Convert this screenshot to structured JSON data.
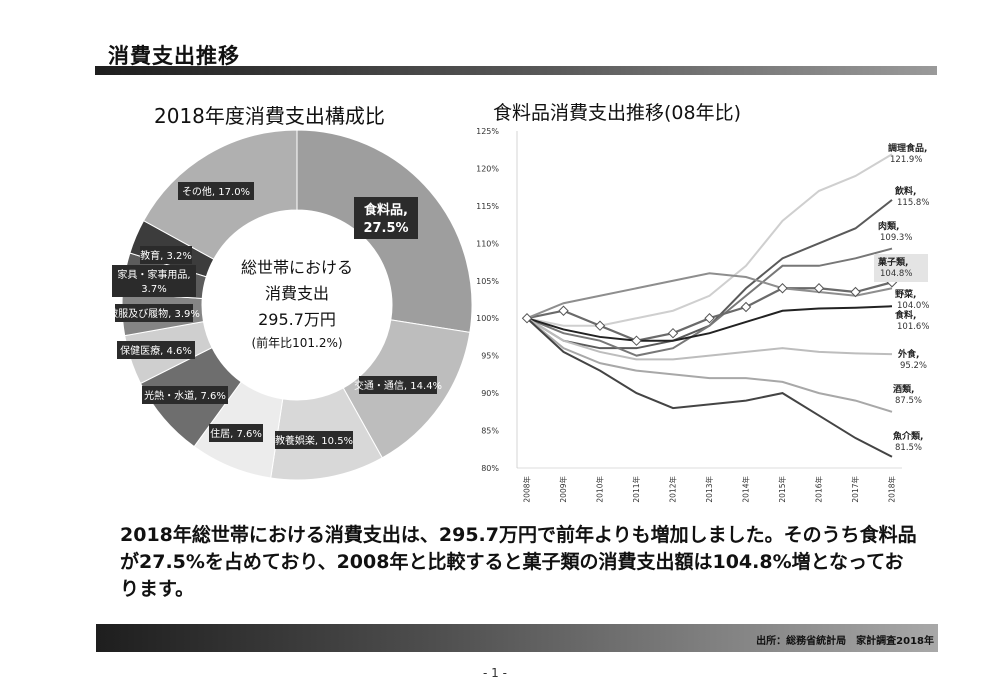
{
  "page_title": "消費支出推移",
  "chart_data": [
    {
      "type": "pie",
      "title": "2018年度消費支出構成比",
      "center_text": [
        "総世帯における",
        "消費支出",
        "295.7万円",
        "(前年比101.2%)"
      ],
      "slices": [
        {
          "label": "食料品,",
          "value": 27.5,
          "value_label": "27.5%",
          "color": "#9e9e9e"
        },
        {
          "label": "交通・通信, 14.4%",
          "value": 14.4,
          "color": "#bdbdbd"
        },
        {
          "label": "教養娯楽, 10.5%",
          "value": 10.5,
          "color": "#d8d8d8"
        },
        {
          "label": "住居, 7.6%",
          "value": 7.6,
          "color": "#ececec"
        },
        {
          "label": "光熱・水道, 7.6%",
          "value": 7.6,
          "color": "#6e6e6e"
        },
        {
          "label": "保健医療, 4.6%",
          "value": 4.6,
          "color": "#cfcfcf"
        },
        {
          "label": "被服及び履物, 3.9%",
          "value": 3.9,
          "color": "#858585"
        },
        {
          "label": "家具・家事用品, 3.7%",
          "value": 3.7,
          "color": "#5c5c5c"
        },
        {
          "label": "教育, 3.2%",
          "value": 3.2,
          "color": "#3c3c3c"
        },
        {
          "label": "その他, 17.0%",
          "value": 17.0,
          "color": "#b0b0b0"
        }
      ]
    },
    {
      "type": "line",
      "title": "食料品消費支出推移(08年比)",
      "x": [
        "2008年",
        "2009年",
        "2010年",
        "2011年",
        "2012年",
        "2013年",
        "2014年",
        "2015年",
        "2016年",
        "2017年",
        "2018年"
      ],
      "ylim": [
        80,
        125
      ],
      "yticks": [
        "80%",
        "85%",
        "90%",
        "95%",
        "100%",
        "105%",
        "110%",
        "115%",
        "120%",
        "125%"
      ],
      "series": [
        {
          "name": "調理食品",
          "end_label": "121.9%",
          "values": [
            100,
            99,
            99,
            100,
            101,
            103,
            107,
            113,
            117,
            119,
            121.9
          ],
          "color": "#cfcfcf"
        },
        {
          "name": "飲料",
          "end_label": "115.8%",
          "values": [
            100,
            97,
            96,
            96,
            97,
            99,
            104,
            108,
            110,
            112,
            115.8
          ],
          "color": "#5a5a5a"
        },
        {
          "name": "肉類",
          "end_label": "109.3%",
          "values": [
            100,
            98,
            97,
            95,
            96,
            99,
            103,
            107,
            107,
            108,
            109.3
          ],
          "color": "#777777"
        },
        {
          "name": "菓子類",
          "end_label": "104.8%",
          "values": [
            100,
            101,
            99,
            97,
            98,
            100,
            101.5,
            104,
            104,
            103.5,
            104.8
          ],
          "color": "#6a6a6a",
          "markers": true
        },
        {
          "name": "野菜",
          "end_label": "104.0%",
          "values": [
            100,
            102,
            103,
            104,
            105,
            106,
            105.5,
            104,
            103.5,
            103,
            104.0
          ],
          "color": "#8e8e8e"
        },
        {
          "name": "食料",
          "end_label": "101.6%",
          "values": [
            100,
            98.5,
            97.5,
            97,
            97,
            98,
            99.5,
            101,
            101.3,
            101.4,
            101.6
          ],
          "color": "#222222"
        },
        {
          "name": "外食",
          "end_label": "95.2%",
          "values": [
            100,
            97,
            95.5,
            94.5,
            94.5,
            95,
            95.5,
            96,
            95.5,
            95.3,
            95.2
          ],
          "color": "#bdbdbd"
        },
        {
          "name": "酒類",
          "end_label": "87.5%",
          "values": [
            100,
            96,
            94,
            93,
            92.5,
            92,
            92,
            91.5,
            90,
            89,
            87.5
          ],
          "color": "#a8a8a8"
        },
        {
          "name": "魚介類",
          "end_label": "81.5%",
          "values": [
            100,
            95.5,
            93,
            90,
            88,
            88.5,
            89,
            90,
            87,
            84,
            81.5
          ],
          "color": "#444444"
        }
      ]
    }
  ],
  "summary": "2018年総世帯における消費支出は、295.7万円で前年よりも増加しました。そのうち食料品が27.5%を占めており、2008年と比較すると菓子類の消費支出額は104.8%増となっております。",
  "source": "出所：総務省統計局　家計調査2018年",
  "page_number": "- 1 -"
}
